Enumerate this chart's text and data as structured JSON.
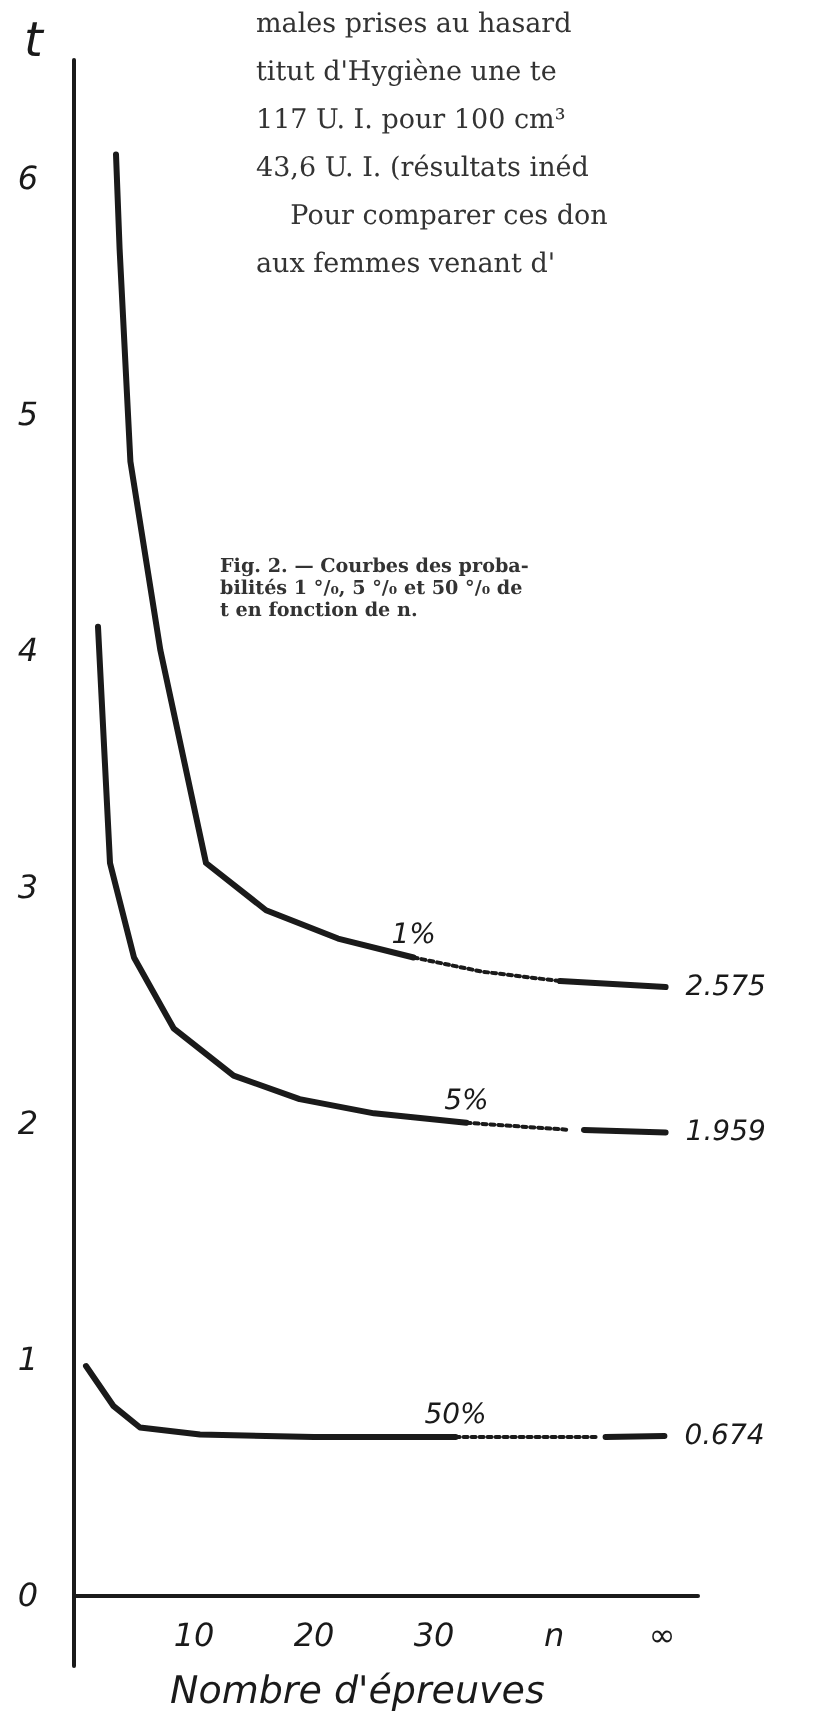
{
  "chart_data": {
    "type": "line",
    "xlabel": "Nombre d'épreuves",
    "ylabel": "t",
    "annotations": [
      "males prises au hasard\ntitut d'Hygiène une te\n117 U. I. pour 100 cm³\n43,6 U. I. (résultats inéd\n    Pour comparer ces don\naux femmes venant d'",
      "Fig. 2. — Courbes des proba-\nbilités 1 °/₀, 5 °/₀ et 50 °/₀ de\nt en fonction de n."
    ],
    "xlim": [
      0,
      52
    ],
    "xticks": [
      10,
      20,
      30,
      {
        "value": 40,
        "label": "n"
      },
      {
        "value": 49,
        "label": "∞"
      }
    ],
    "ylim": [
      -0.3,
      6.5
    ],
    "yticks": [
      0,
      1,
      2,
      3,
      4,
      5,
      6
    ],
    "grid": false,
    "legend": false,
    "marker": "none",
    "series": [
      {
        "name": "1%",
        "color": "#1a1a1a",
        "line_style": "solid",
        "x": [
          3.5,
          3.8,
          4.7,
          7.2,
          11,
          16,
          22,
          28.3
        ],
        "values": [
          6.1,
          5.7,
          4.8,
          4.0,
          3.1,
          2.9,
          2.78,
          2.7
        ]
      },
      {
        "color": "#1a1a1a",
        "line_style": "dotted",
        "x": [
          28.3,
          34,
          40.5
        ],
        "values": [
          2.7,
          2.64,
          2.6
        ]
      },
      {
        "color": "#1a1a1a",
        "line_style": "solid",
        "x": [
          40.5,
          49.3
        ],
        "values": [
          2.6,
          2.575
        ],
        "value_labels": [
          null,
          "2.575"
        ]
      },
      {
        "name": "5%",
        "color": "#1a1a1a",
        "line_style": "solid",
        "x": [
          2,
          3,
          5,
          8.3,
          13.3,
          18.8,
          25,
          32.7
        ],
        "values": [
          4.1,
          3.1,
          2.7,
          2.4,
          2.2,
          2.1,
          2.04,
          2.0
        ]
      },
      {
        "color": "#1a1a1a",
        "line_style": "dotted",
        "x": [
          32.7,
          41.3
        ],
        "values": [
          2.0,
          1.97
        ]
      },
      {
        "color": "#1a1a1a",
        "line_style": "solid",
        "x": [
          42.5,
          49.3
        ],
        "values": [
          1.97,
          1.959
        ],
        "value_labels": [
          null,
          "1.959"
        ]
      },
      {
        "name": "50%",
        "color": "#1a1a1a",
        "line_style": "solid",
        "x": [
          1,
          3.3,
          5.5,
          10.5,
          20,
          31.8
        ],
        "values": [
          0.97,
          0.8,
          0.71,
          0.68,
          0.67,
          0.67
        ]
      },
      {
        "color": "#1a1a1a",
        "line_style": "dotted",
        "x": [
          31.8,
          43.8
        ],
        "values": [
          0.67,
          0.67
        ]
      },
      {
        "color": "#1a1a1a",
        "line_style": "solid",
        "x": [
          44.3,
          49.2
        ],
        "values": [
          0.67,
          0.674
        ],
        "value_labels": [
          null,
          "0.674"
        ]
      }
    ]
  }
}
